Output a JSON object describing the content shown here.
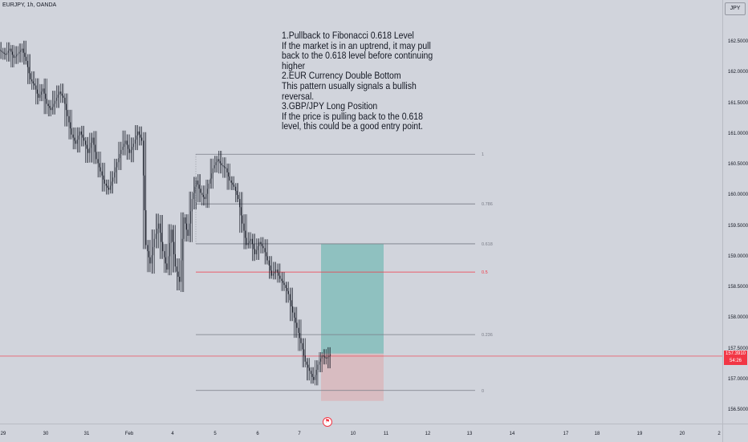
{
  "header": {
    "symbol": "EURJPY, 1h, OANDA",
    "currency": "JPY"
  },
  "annotation": {
    "lines": [
      "1.Pullback to Fibonacci 0.618 Level",
      "If the market is in an uptrend, it may pull",
      "back to the 0.618 level before continuing",
      "higher",
      "2.EUR Currency Double Bottom",
      "This pattern usually signals a bullish",
      "reversal.",
      "3.GBP/JPY Long Position",
      "If the price is pulling back to the 0.618",
      "level, this could be a good entry point."
    ]
  },
  "current_price": {
    "value": "157.3910",
    "countdown": "54:26"
  },
  "colors": {
    "fib_line": "#787b86",
    "fib_half": "#f23645",
    "profit_zone": "#8fc1c0",
    "loss_zone": "#d8bcc1",
    "price_line": "#f23645",
    "candle": "#131722"
  },
  "chart_data": {
    "type": "candlestick",
    "ylim": [
      156.4,
      162.7
    ],
    "y_ticks": [
      "162.5000",
      "162.0000",
      "161.5000",
      "161.0000",
      "160.5000",
      "160.0000",
      "159.5000",
      "159.0000",
      "158.5000",
      "158.0000",
      "157.5000",
      "157.0000",
      "156.5000"
    ],
    "x_ticks": [
      "29",
      "30",
      "31",
      "Feb",
      "4",
      "5",
      "6",
      "7",
      "10",
      "11",
      "12",
      "13",
      "14",
      "17",
      "18",
      "19",
      "20",
      "2"
    ],
    "fibonacci": [
      {
        "label": "1",
        "price": 160.68
      },
      {
        "label": "0.786",
        "price": 159.87
      },
      {
        "label": "0.618",
        "price": 159.22
      },
      {
        "label": "0.5",
        "price": 158.76
      },
      {
        "label": "0.236",
        "price": 157.74
      },
      {
        "label": "0",
        "price": 156.83
      }
    ],
    "position": {
      "type": "long",
      "target": 159.22,
      "entry": 157.43,
      "stop": 156.66
    },
    "close_series": [
      162.35,
      162.3,
      162.4,
      162.25,
      162.32,
      162.4,
      162.2,
      161.9,
      161.8,
      161.6,
      161.75,
      161.5,
      161.4,
      161.55,
      161.7,
      161.6,
      161.3,
      161.0,
      160.85,
      161.05,
      160.9,
      160.7,
      160.95,
      160.6,
      160.4,
      160.2,
      160.1,
      160.3,
      160.55,
      160.75,
      160.9,
      160.7,
      160.85,
      161.05,
      160.9,
      159.2,
      158.9,
      159.3,
      159.55,
      159.1,
      158.8,
      159.45,
      158.85,
      158.6,
      159.65,
      159.35,
      159.95,
      160.25,
      160.05,
      159.95,
      160.2,
      160.45,
      160.6,
      160.5,
      160.45,
      160.25,
      160.15,
      159.95,
      159.55,
      159.2,
      159.3,
      159.05,
      159.25,
      159.15,
      158.95,
      158.7,
      158.8,
      158.65,
      158.55,
      158.4,
      158.1,
      157.85,
      157.6,
      157.3,
      157.15,
      157.0,
      157.25,
      157.4,
      157.35,
      157.42
    ]
  }
}
